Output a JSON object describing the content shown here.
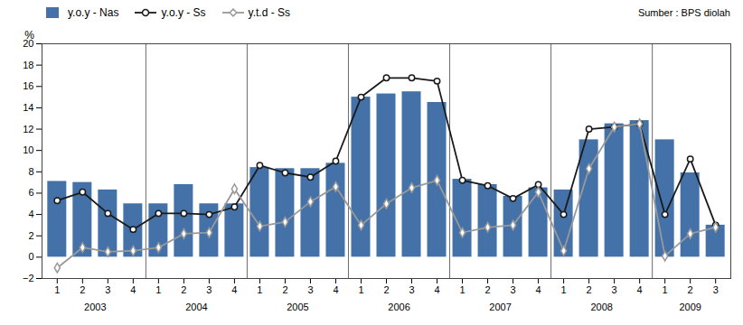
{
  "chart_data": {
    "type": "bar",
    "y_label": "%",
    "annotations": [
      "Sumber : BPS diolah"
    ],
    "categories": [
      "1",
      "2",
      "3",
      "4",
      "1",
      "2",
      "3",
      "4",
      "1",
      "2",
      "3",
      "4",
      "1",
      "2",
      "3",
      "4",
      "1",
      "2",
      "3",
      "4",
      "1",
      "2",
      "3",
      "4",
      "1",
      "2",
      "3"
    ],
    "year_labels": [
      "2003",
      "2004",
      "2005",
      "2006",
      "2007",
      "2008",
      "2009"
    ],
    "series": [
      {
        "name": "y.o.y - Nas",
        "type": "bar",
        "color": "#4472A8",
        "values": [
          7.1,
          7.0,
          6.3,
          5.0,
          5.0,
          6.8,
          5.0,
          5.0,
          8.4,
          8.3,
          8.3,
          8.8,
          15.0,
          15.3,
          15.5,
          14.5,
          7.3,
          6.8,
          5.7,
          6.5,
          6.3,
          11.0,
          12.5,
          12.8,
          11.0,
          7.9,
          3.0
        ]
      },
      {
        "name": "y.o.y - Ss",
        "type": "line",
        "color": "#1a1a1a",
        "marker": "circle",
        "values": [
          5.3,
          6.1,
          4.1,
          2.6,
          4.1,
          4.1,
          4.0,
          4.7,
          8.6,
          7.9,
          7.5,
          9.0,
          15.0,
          16.8,
          16.8,
          16.5,
          7.2,
          6.7,
          5.5,
          6.8,
          4.0,
          12.0,
          12.2,
          12.5,
          4.0,
          9.2,
          3.0
        ]
      },
      {
        "name": "y.t.d - Ss",
        "type": "line",
        "color": "#999999",
        "marker": "diamond",
        "values": [
          -1.0,
          0.9,
          0.5,
          0.6,
          0.9,
          2.2,
          2.3,
          6.4,
          2.9,
          3.3,
          5.2,
          6.6,
          3.0,
          5.0,
          6.5,
          7.2,
          2.3,
          2.8,
          3.0,
          6.1,
          0.6,
          8.3,
          12.2,
          12.5,
          0.1,
          2.2,
          2.8
        ]
      }
    ],
    "ylim": [
      -2,
      20
    ],
    "yticks": [
      -2,
      0,
      2,
      4,
      6,
      8,
      10,
      12,
      14,
      16,
      18,
      20
    ],
    "grid": false,
    "legend": "upper left"
  }
}
